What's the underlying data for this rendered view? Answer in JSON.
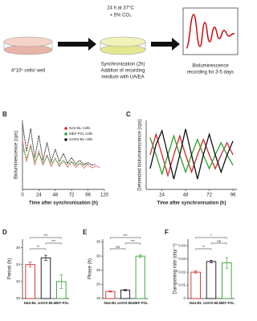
{
  "schematic": {
    "seeding": "4*10⁵ cells/ well",
    "incubation": [
      "24 h at 37°C",
      "+ 5% CO₂"
    ],
    "synchronization": [
      "Synchronization (2h)",
      "Addition of recording",
      "medium with UA/EA"
    ],
    "recording": [
      "Bioluminescence",
      "recording for 3-5 days"
    ]
  },
  "chart_data": [
    {
      "panel": "B",
      "type": "line",
      "line_style": "dotted",
      "x_label": "Time after synchronisation (h)",
      "y_label": "Bioluminescence (cps)",
      "x": [
        0,
        6,
        12,
        18,
        24,
        30,
        36,
        42,
        48,
        54,
        60,
        66,
        72,
        78,
        84,
        90,
        96,
        102,
        108,
        114,
        120
      ],
      "xlim": [
        0,
        120
      ],
      "xticks": [
        0,
        24,
        48,
        72,
        96,
        120
      ],
      "ylim": [
        0,
        100
      ],
      "legend": "upper right",
      "series": [
        {
          "name": "N44-BL Cells",
          "color": "#d62728",
          "values": [
            70,
            40,
            65,
            35,
            55,
            35,
            50,
            33,
            45,
            33,
            42,
            32,
            40,
            32,
            38,
            31,
            36,
            31,
            34,
            31,
            null
          ]
        },
        {
          "name": "MEF-P2L cells",
          "color": "#2ca02c",
          "values": [
            60,
            45,
            62,
            40,
            52,
            38,
            48,
            37,
            44,
            36,
            42,
            36,
            40,
            35,
            38,
            35,
            37,
            null,
            null,
            null,
            null
          ]
        },
        {
          "name": "U2OS-BL cells",
          "color": "#111111",
          "values": [
            95,
            55,
            88,
            45,
            78,
            42,
            68,
            40,
            58,
            40,
            52,
            38,
            46,
            37,
            42,
            36,
            39,
            35,
            37,
            null,
            null
          ]
        }
      ]
    },
    {
      "panel": "C",
      "type": "line",
      "line_style": "solid",
      "x_label": "Time after synchronisation (h)",
      "y_label": "Detrended bioluminescence (cps)",
      "x": [
        12,
        18,
        24,
        30,
        36,
        42,
        48,
        54,
        60,
        66,
        72,
        78,
        84,
        90,
        96
      ],
      "xlim": [
        8,
        100
      ],
      "xticks": [
        24,
        48,
        72,
        96
      ],
      "ylim": [
        -100,
        100
      ],
      "series": [
        {
          "name": "N44-BL Cells",
          "color": "#d62728",
          "values": [
            0,
            60,
            0,
            -60,
            0,
            55,
            0,
            -50,
            0,
            45,
            0,
            -40,
            0,
            35,
            0
          ]
        },
        {
          "name": "MEF-P2L cells",
          "color": "#2ca02c",
          "values": [
            50,
            0,
            -55,
            0,
            55,
            0,
            -50,
            0,
            45,
            0,
            -40,
            0,
            35,
            0,
            -30
          ]
        },
        {
          "name": "U2OS-BL cells",
          "color": "#111111",
          "values": [
            -40,
            30,
            70,
            0,
            -70,
            0,
            75,
            0,
            -70,
            0,
            60,
            0,
            -50,
            0,
            40
          ]
        }
      ]
    },
    {
      "panel": "D",
      "type": "bar",
      "y_label": "Period (h)",
      "categories": [
        "N44-BL",
        "U2OS-BL",
        "MEF-P2L"
      ],
      "values": [
        24,
        24.8,
        22
      ],
      "errors": [
        0.3,
        0.3,
        0.8
      ],
      "colors": [
        "#d62728",
        "#111111",
        "#2ca02c"
      ],
      "ylim": [
        20,
        27
      ],
      "yticks": [
        20,
        22,
        24,
        26
      ],
      "annotations": [
        {
          "text": "**",
          "between": [
            0,
            1
          ]
        },
        {
          "text": "***",
          "between": [
            1,
            2
          ]
        },
        {
          "text": "***",
          "between": [
            0,
            2
          ]
        }
      ]
    },
    {
      "panel": "E",
      "type": "bar",
      "y_label": "Phase (h)",
      "categories": [
        "N44-BL",
        "U2OS-BL",
        "MEF-P2L"
      ],
      "values": [
        17.5,
        18,
        30
      ],
      "errors": [
        0.2,
        0.3,
        0.5
      ],
      "colors": [
        "#d62728",
        "#111111",
        "#2ca02c"
      ],
      "ylim": [
        15,
        36
      ],
      "yticks": [
        15,
        20,
        25,
        30,
        35
      ],
      "annotations": [
        {
          "text": "ns",
          "between": [
            0,
            1
          ]
        },
        {
          "text": "***",
          "between": [
            1,
            2
          ]
        },
        {
          "text": "***",
          "between": [
            0,
            2
          ]
        }
      ]
    },
    {
      "panel": "F",
      "type": "bar",
      "y_label": "Dampening rate (day⁻¹)",
      "categories": [
        "N44-BL",
        "U2OS-BL",
        "MEF-P2L"
      ],
      "values": [
        0.02,
        0.028,
        0.027
      ],
      "errors": [
        0.001,
        0.001,
        0.004
      ],
      "colors": [
        "#d62728",
        "#111111",
        "#2ca02c"
      ],
      "ylim": [
        0,
        0.045
      ],
      "yticks": [
        0,
        0.01,
        0.02,
        0.03,
        0.04
      ],
      "annotations": [
        {
          "text": "**",
          "between": [
            0,
            1
          ]
        },
        {
          "text": "ns",
          "between": [
            1,
            2
          ]
        },
        {
          "text": "*",
          "between": [
            0,
            2
          ]
        }
      ]
    }
  ]
}
